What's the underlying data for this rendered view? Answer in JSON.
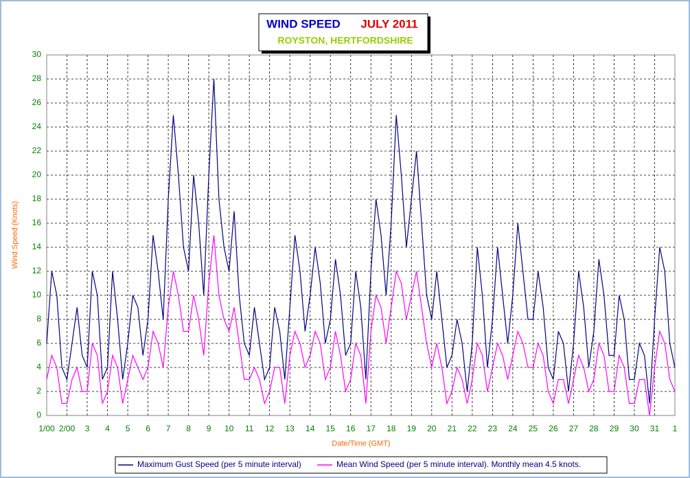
{
  "chart_data": {
    "type": "line",
    "title": "WIND SPEED",
    "title_month": "JULY 2011",
    "subtitle": "ROYSTON, HERTFORDSHIRE",
    "y_label": "Wind Speed (Knots)",
    "x_label": "Date/Time (GMT)",
    "x": [
      0,
      0.25,
      0.5,
      0.75,
      1,
      1.25,
      1.5,
      1.75,
      2,
      2.25,
      2.5,
      2.75,
      3,
      3.25,
      3.5,
      3.75,
      4,
      4.25,
      4.5,
      4.75,
      5,
      5.25,
      5.5,
      5.75,
      6,
      6.25,
      6.5,
      6.75,
      7,
      7.25,
      7.5,
      7.75,
      8,
      8.25,
      8.5,
      8.75,
      9,
      9.25,
      9.5,
      9.75,
      10,
      10.25,
      10.5,
      10.75,
      11,
      11.25,
      11.5,
      11.75,
      12,
      12.25,
      12.5,
      12.75,
      13,
      13.25,
      13.5,
      13.75,
      14,
      14.25,
      14.5,
      14.75,
      15,
      15.25,
      15.5,
      15.75,
      16,
      16.25,
      16.5,
      16.75,
      17,
      17.25,
      17.5,
      17.75,
      18,
      18.25,
      18.5,
      18.75,
      19,
      19.25,
      19.5,
      19.75,
      20,
      20.25,
      20.5,
      20.75,
      21,
      21.25,
      21.5,
      21.75,
      22,
      22.25,
      22.5,
      22.75,
      23,
      23.25,
      23.5,
      23.75,
      24,
      24.25,
      24.5,
      24.75,
      25,
      25.25,
      25.5,
      25.75,
      26,
      26.25,
      26.5,
      26.75,
      27,
      27.25,
      27.5,
      27.75,
      28,
      28.25,
      28.5,
      28.75,
      29,
      29.25,
      29.5,
      29.75,
      30,
      30.25,
      30.5,
      30.75,
      31
    ],
    "series": [
      {
        "name": "Maximum Gust Speed (per 5 minute interval)",
        "color": "#000080",
        "values": [
          6,
          12,
          10,
          4,
          3,
          6,
          9,
          5,
          4,
          12,
          10,
          3,
          4,
          12,
          8,
          3,
          6,
          10,
          9,
          5,
          8,
          15,
          12,
          8,
          18,
          25,
          20,
          14,
          12,
          20,
          16,
          10,
          20,
          28,
          18,
          14,
          12,
          17,
          10,
          6,
          5,
          9,
          6,
          3,
          4,
          9,
          7,
          3,
          9,
          15,
          12,
          7,
          10,
          14,
          11,
          6,
          8,
          13,
          10,
          5,
          6,
          12,
          9,
          3,
          12,
          18,
          15,
          10,
          16,
          25,
          20,
          14,
          18,
          22,
          16,
          10,
          8,
          12,
          8,
          4,
          5,
          8,
          6,
          2,
          6,
          14,
          10,
          4,
          8,
          14,
          10,
          6,
          10,
          16,
          12,
          8,
          8,
          12,
          9,
          4,
          3,
          7,
          6,
          2,
          6,
          12,
          9,
          4,
          7,
          13,
          10,
          5,
          5,
          10,
          8,
          3,
          3,
          6,
          5,
          1,
          8,
          14,
          12,
          6,
          4
        ]
      },
      {
        "name": "Mean Wind Speed (per 5 minute interval). Monthly mean 4.5 knots.",
        "color": "#ff00ff",
        "values": [
          3,
          5,
          4,
          1,
          1,
          3,
          4,
          2,
          2,
          6,
          5,
          1,
          2,
          5,
          4,
          1,
          3,
          5,
          4,
          3,
          4,
          7,
          6,
          4,
          9,
          12,
          10,
          7,
          7,
          10,
          8,
          5,
          11,
          15,
          10,
          8,
          7,
          9,
          6,
          3,
          3,
          4,
          3,
          1,
          2,
          4,
          4,
          1,
          5,
          7,
          6,
          4,
          5,
          7,
          6,
          3,
          4,
          7,
          5,
          2,
          3,
          6,
          5,
          1,
          7,
          10,
          9,
          6,
          9,
          12,
          11,
          8,
          10,
          12,
          9,
          6,
          4,
          6,
          4,
          1,
          2,
          4,
          3,
          1,
          3,
          6,
          5,
          2,
          4,
          6,
          5,
          3,
          5,
          7,
          6,
          4,
          4,
          6,
          5,
          2,
          1,
          3,
          3,
          1,
          3,
          5,
          4,
          2,
          3,
          6,
          5,
          2,
          2,
          5,
          4,
          1,
          1,
          3,
          3,
          0,
          4,
          7,
          6,
          3,
          2
        ]
      }
    ],
    "xlim": [
      0,
      31
    ],
    "xticks": [
      {
        "value": 0,
        "label": "1/00"
      },
      {
        "value": 1,
        "label": "2/00"
      },
      2,
      {
        "value": 2,
        "label": "3"
      },
      {
        "value": 3,
        "label": "4"
      },
      {
        "value": 4,
        "label": "5"
      },
      {
        "value": 5,
        "label": "6"
      },
      {
        "value": 6,
        "label": "7"
      },
      {
        "value": 7,
        "label": "8"
      },
      {
        "value": 8,
        "label": "9"
      },
      {
        "value": 9,
        "label": "10"
      },
      {
        "value": 10,
        "label": "11"
      },
      {
        "value": 11,
        "label": "12"
      },
      {
        "value": 12,
        "label": "13"
      },
      {
        "value": 13,
        "label": "14"
      },
      {
        "value": 14,
        "label": "15"
      },
      {
        "value": 15,
        "label": "16"
      },
      {
        "value": 16,
        "label": "17"
      },
      {
        "value": 17,
        "label": "18"
      },
      {
        "value": 18,
        "label": "19"
      },
      {
        "value": 19,
        "label": "20"
      },
      {
        "value": 20,
        "label": "21"
      },
      {
        "value": 21,
        "label": "22"
      },
      {
        "value": 22,
        "label": "23"
      },
      {
        "value": 23,
        "label": "24"
      },
      {
        "value": 24,
        "label": "25"
      },
      {
        "value": 25,
        "label": "26"
      },
      {
        "value": 26,
        "label": "27"
      },
      {
        "value": 27,
        "label": "28"
      },
      {
        "value": 28,
        "label": "29"
      },
      {
        "value": 29,
        "label": "30"
      },
      {
        "value": 30,
        "label": "31"
      },
      {
        "value": 31,
        "label": "1"
      }
    ],
    "ylim": [
      0,
      30
    ],
    "yticks": [
      0,
      2,
      4,
      6,
      8,
      10,
      12,
      14,
      16,
      18,
      20,
      22,
      24,
      26,
      28,
      30
    ],
    "grid": true
  }
}
